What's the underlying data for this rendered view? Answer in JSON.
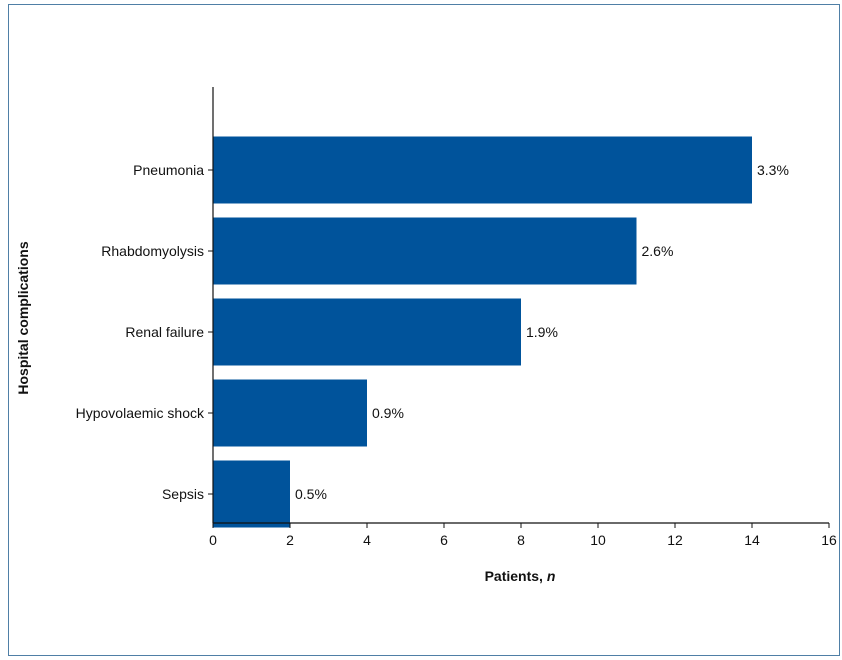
{
  "chart_data": {
    "type": "bar",
    "orientation": "horizontal",
    "categories": [
      "Pneumonia",
      "Rhabdomyolysis",
      "Renal failure",
      "Hypovolaemic shock",
      "Sepsis"
    ],
    "values": [
      14,
      11,
      8,
      4,
      2
    ],
    "data_labels": [
      "3.3%",
      "2.6%",
      "1.9%",
      "0.9%",
      "0.5%"
    ],
    "xlabel_main": "Patients, ",
    "xlabel_italic": "n",
    "ylabel": "Hospital complications",
    "xlim": [
      0,
      16
    ],
    "xticks": [
      "0",
      "2",
      "4",
      "6",
      "8",
      "10",
      "12",
      "14",
      "16"
    ],
    "grid": false,
    "bar_color": "#00539b"
  }
}
